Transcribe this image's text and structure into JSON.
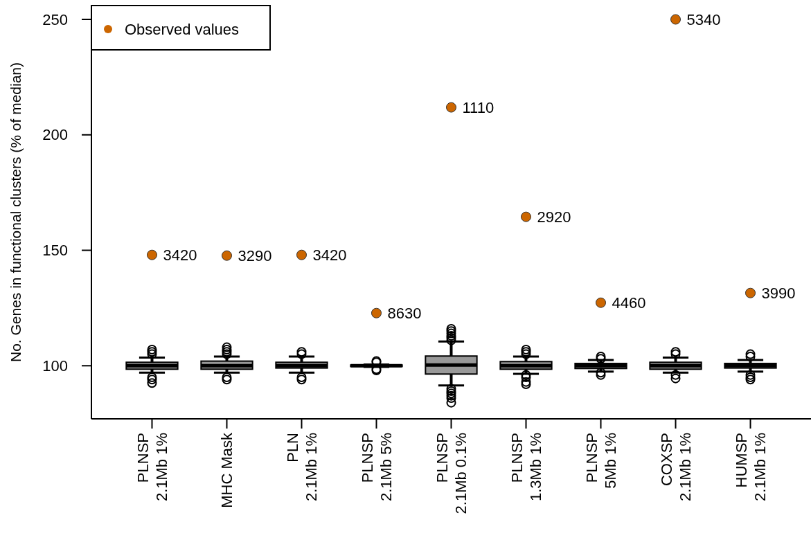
{
  "chart_data": {
    "type": "box",
    "ylabel": "No. Genes in functional clusters (% of median)",
    "categories": [
      "PLNSP\n2.1Mb 1%",
      "MHC Mask",
      "PLN\n2.1Mb 1%",
      "PLNSP\n2.1Mb 5%",
      "PLNSP\n2.1Mb 0.1%",
      "PLNSP\n1.3Mb 1%",
      "PLNSP\n5Mb 1%",
      "COXSP\n2.1Mb 1%",
      "HUMSP\n2.1Mb 1%"
    ],
    "ylim": [
      77,
      256
    ],
    "yticks": [
      100,
      150,
      200,
      250
    ],
    "legend": "top left",
    "grid": false,
    "series": [
      {
        "color": "#999999",
        "boxes": [
          {
            "low": 97,
            "q1": 98.5,
            "median": 100,
            "q3": 101.5,
            "high": 103.5,
            "outliers": [
              105,
              106,
              107,
              95,
              94,
              92.5
            ]
          },
          {
            "low": 97,
            "q1": 98.5,
            "median": 100,
            "q3": 102,
            "high": 104,
            "outliers": [
              105,
              106,
              107,
              108,
              95,
              94
            ]
          },
          {
            "low": 97,
            "q1": 99,
            "median": 100,
            "q3": 101.5,
            "high": 104,
            "outliers": [
              105,
              106,
              95,
              94
            ]
          },
          {
            "low": 99.5,
            "q1": 99.7,
            "median": 100,
            "q3": 100.3,
            "high": 100.5,
            "outliers": [
              102,
              101.5,
              98.5,
              98
            ]
          },
          {
            "low": 91.5,
            "q1": 96.4,
            "median": 100.3,
            "q3": 104.2,
            "high": 110.5,
            "outliers": [
              111,
              112,
              113,
              114,
              115,
              116,
              90,
              89,
              88,
              87,
              86,
              84
            ]
          },
          {
            "low": 96.5,
            "q1": 98.5,
            "median": 100,
            "q3": 101.8,
            "high": 104,
            "outliers": [
              105,
              106,
              107,
              96,
              95,
              93,
              92
            ]
          },
          {
            "low": 97.5,
            "q1": 98.8,
            "median": 100,
            "q3": 101,
            "high": 102.5,
            "outliers": [
              104,
              103,
              97,
              96
            ]
          },
          {
            "low": 97,
            "q1": 98.5,
            "median": 100,
            "q3": 101.5,
            "high": 103.5,
            "outliers": [
              106,
              105,
              96,
              94.5
            ]
          },
          {
            "low": 97.5,
            "q1": 99,
            "median": 100,
            "q3": 101,
            "high": 102.5,
            "outliers": [
              105,
              104,
              96,
              95,
              94
            ]
          }
        ]
      },
      {
        "type": "scatter",
        "name": "Observed values",
        "color": "#cc6600",
        "marker": "circle",
        "x": [
          "PLNSP\n2.1Mb 1%",
          "MHC Mask",
          "PLN\n2.1Mb 1%",
          "PLNSP\n2.1Mb 5%",
          "PLNSP\n2.1Mb 0.1%",
          "PLNSP\n1.3Mb 1%",
          "PLNSP\n5Mb 1%",
          "COXSP\n2.1Mb 1%",
          "HUMSP\n2.1Mb 1%"
        ],
        "values": [
          148,
          147.7,
          148,
          122.8,
          211.9,
          164.5,
          127.3,
          250,
          131.5
        ]
      }
    ],
    "annotations": [
      {
        "text": "3420",
        "x": "PLNSP\n2.1Mb 1%",
        "y": 148
      },
      {
        "text": "3290",
        "x": "MHC Mask",
        "y": 147.7
      },
      {
        "text": "3420",
        "x": "PLN\n2.1Mb 1%",
        "y": 148
      },
      {
        "text": "8630",
        "x": "PLNSP\n2.1Mb 5%",
        "y": 122.8
      },
      {
        "text": "1110",
        "x": "PLNSP\n2.1Mb 0.1%",
        "y": 211.9
      },
      {
        "text": "2920",
        "x": "PLNSP\n1.3Mb 1%",
        "y": 164.5
      },
      {
        "text": "4460",
        "x": "PLNSP\n5Mb 1%",
        "y": 127.3
      },
      {
        "text": "5340",
        "x": "COXSP\n2.1Mb 1%",
        "y": 250
      },
      {
        "text": "3990",
        "x": "HUMSP\n2.1Mb 1%",
        "y": 131.5
      }
    ]
  }
}
